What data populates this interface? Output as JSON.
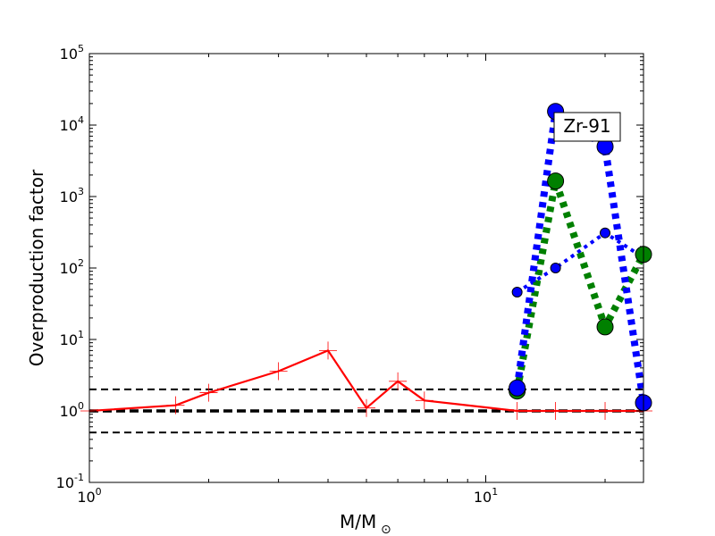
{
  "chart_data": {
    "type": "line",
    "title": "",
    "xlabel": "M/M",
    "xlabel_symbol": "⊙",
    "ylabel": "Overproduction factor",
    "xscale": "log",
    "yscale": "log",
    "xlim": [
      1,
      25
    ],
    "ylim": [
      0.1,
      100000
    ],
    "x_ticks": [
      {
        "value": 1,
        "base": "10",
        "exp": "0"
      },
      {
        "value": 10,
        "base": "10",
        "exp": "1"
      }
    ],
    "y_ticks": [
      {
        "value": 0.1,
        "base": "10",
        "exp": "-1"
      },
      {
        "value": 1,
        "base": "10",
        "exp": "0"
      },
      {
        "value": 10,
        "base": "10",
        "exp": "1"
      },
      {
        "value": 100,
        "base": "10",
        "exp": "2"
      },
      {
        "value": 1000,
        "base": "10",
        "exp": "3"
      },
      {
        "value": 10000,
        "base": "10",
        "exp": "4"
      },
      {
        "value": 100000,
        "base": "10",
        "exp": "5"
      }
    ],
    "annotation": "Zr-91",
    "reference_lines": [
      {
        "y": 2.0,
        "style": "dashed",
        "color": "#000000"
      },
      {
        "y": 1.0,
        "style": "dashed-bold",
        "color": "#000000"
      },
      {
        "y": 0.5,
        "style": "dashed",
        "color": "#000000"
      }
    ],
    "series": [
      {
        "color": "#ff0000",
        "line": "solid",
        "marker": "plus",
        "x": [
          1.0,
          1.65,
          2.0,
          3.0,
          4.0,
          5.0,
          6.0,
          7.0,
          12.0,
          15.0,
          20.0,
          25.0
        ],
        "y": [
          1.0,
          1.2,
          1.8,
          3.6,
          7.0,
          1.1,
          2.6,
          1.4,
          1.0,
          1.0,
          1.0,
          1.0
        ]
      },
      {
        "color": "#0000ff",
        "line": "dotted",
        "marker": "circle",
        "x": [
          12.0,
          15.0,
          20.0,
          25.0
        ],
        "y": [
          46,
          100,
          310,
          140
        ]
      },
      {
        "color": "#008000",
        "line": "dotted-thick",
        "marker": "circle",
        "x": [
          12.0,
          15.0,
          20.0,
          25.0
        ],
        "y": [
          1.9,
          1650,
          15,
          155
        ]
      },
      {
        "color": "#0000ff",
        "line": "dotted-thick",
        "marker": "circle",
        "x": [
          12.0,
          15.0,
          20.0,
          25.0
        ],
        "y": [
          2.1,
          15500,
          5000,
          1.3
        ]
      }
    ]
  }
}
